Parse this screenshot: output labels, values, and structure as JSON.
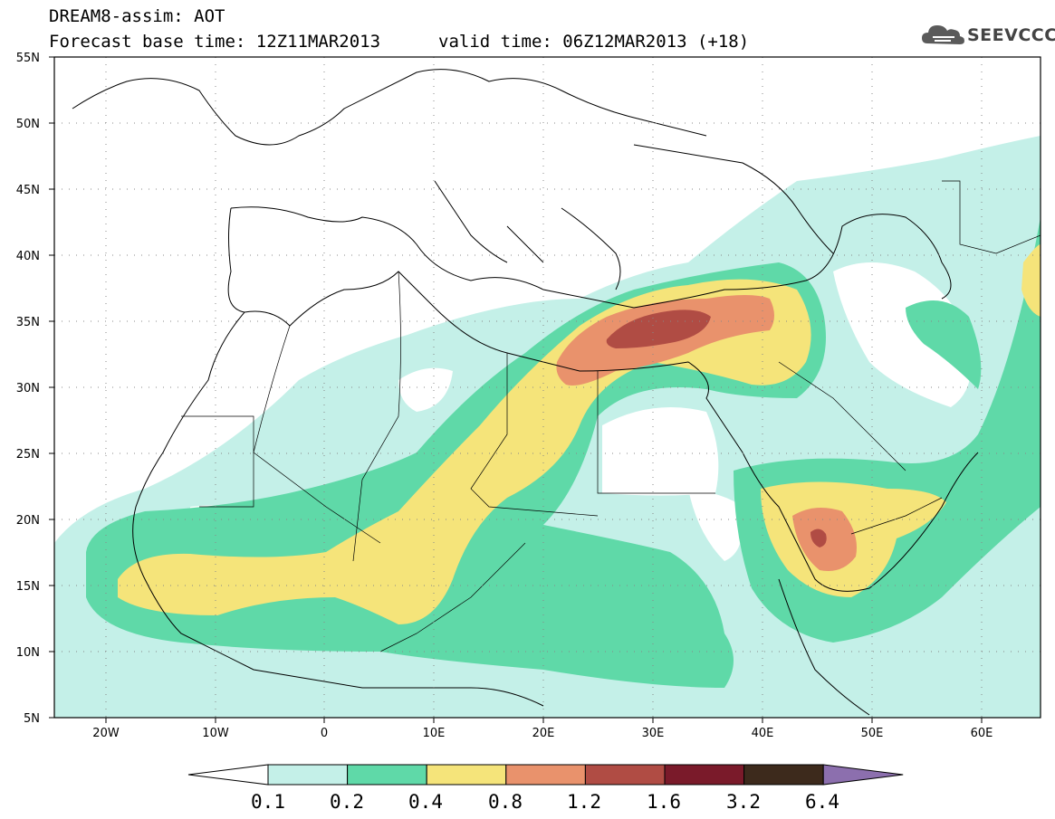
{
  "header": {
    "title_line1": "DREAM8-assim: AOT",
    "title_line2": "Forecast base time: 12Z11MAR2013",
    "valid_time": "valid time: 06Z12MAR2013 (+18)"
  },
  "logo": {
    "text": "SEEVCCC"
  },
  "map": {
    "lon_range": [
      -25,
      65
    ],
    "lat_range": [
      5,
      55
    ],
    "lat_ticks": [
      "55N",
      "50N",
      "45N",
      "40N",
      "35N",
      "30N",
      "25N",
      "20N",
      "15N",
      "10N",
      "5N"
    ],
    "lon_ticks": [
      "20W",
      "10W",
      "0",
      "10E",
      "20E",
      "30E",
      "40E",
      "50E",
      "60E"
    ],
    "grid": "dotted"
  },
  "colorbar": {
    "labels": [
      "0.1",
      "0.2",
      "0.4",
      "0.8",
      "1.2",
      "1.6",
      "3.2",
      "6.4"
    ],
    "colors": [
      "#c4f0e8",
      "#5fd9a8",
      "#f5e47a",
      "#e9926c",
      "#b04c44",
      "#7a1a2a",
      "#3d2a1c",
      "#8c6fae"
    ]
  }
}
